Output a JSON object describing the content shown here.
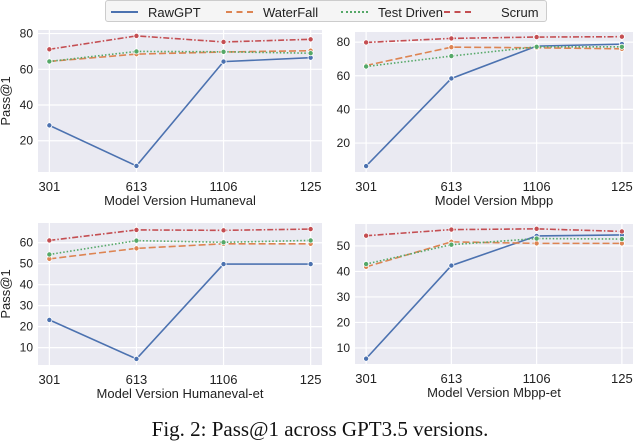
{
  "legend": {
    "placement": "top-center",
    "items": [
      {
        "name": "RawGPT",
        "color": "#4c72b0",
        "style": "solid"
      },
      {
        "name": "WaterFall",
        "color": "#dd8452",
        "style": "dashed"
      },
      {
        "name": "Test Driven",
        "color": "#55a868",
        "style": "dotted"
      },
      {
        "name": "Scrum",
        "color": "#c44e52",
        "style": "dashdot"
      }
    ]
  },
  "caption": "Fig. 2: Pass@1 across GPT3.5 versions.",
  "chart_data": [
    {
      "type": "line",
      "xlabel": "Model Version Humaneval",
      "ylabel": "Pass@1",
      "categories": [
        "301",
        "613",
        "1106",
        "125"
      ],
      "ylim": [
        2.5,
        82
      ],
      "yticks": [
        20,
        40,
        60,
        80
      ],
      "grid": true,
      "series": [
        {
          "name": "RawGPT",
          "values": [
            28.6,
            5.9,
            64.3,
            66.5
          ]
        },
        {
          "name": "WaterFall",
          "values": [
            64.4,
            68.5,
            69.7,
            70.4
          ]
        },
        {
          "name": "Test Driven",
          "values": [
            64.4,
            70.0,
            69.8,
            69.0
          ]
        },
        {
          "name": "Scrum",
          "values": [
            71.2,
            78.7,
            75.3,
            76.8
          ]
        }
      ]
    },
    {
      "type": "line",
      "xlabel": "Model Version Mbpp",
      "ylabel": "",
      "categories": [
        "301",
        "613",
        "1106",
        "125"
      ],
      "ylim": [
        2.8,
        86
      ],
      "yticks": [
        20,
        40,
        60,
        80
      ],
      "grid": true,
      "series": [
        {
          "name": "RawGPT",
          "values": [
            6.3,
            58.4,
            77.6,
            78.8
          ]
        },
        {
          "name": "WaterFall",
          "values": [
            66.1,
            77.0,
            76.6,
            76.0
          ]
        },
        {
          "name": "Test Driven",
          "values": [
            65.5,
            71.7,
            77.2,
            77.2
          ]
        },
        {
          "name": "Scrum",
          "values": [
            79.8,
            82.2,
            83.0,
            83.2
          ]
        }
      ]
    },
    {
      "type": "line",
      "xlabel": "Model Version Humaneval-et",
      "ylabel": "Pass@1",
      "categories": [
        "301",
        "613",
        "1106",
        "125"
      ],
      "ylim": [
        1.7,
        69.4
      ],
      "yticks": [
        10,
        20,
        30,
        40,
        50,
        60
      ],
      "grid": true,
      "series": [
        {
          "name": "RawGPT",
          "values": [
            23.2,
            4.6,
            49.8,
            49.8
          ]
        },
        {
          "name": "WaterFall",
          "values": [
            52.3,
            57.3,
            59.5,
            59.5
          ]
        },
        {
          "name": "Test Driven",
          "values": [
            54.4,
            61.0,
            60.2,
            61.1
          ]
        },
        {
          "name": "Scrum",
          "values": [
            61.1,
            66.1,
            65.9,
            66.5
          ]
        }
      ]
    },
    {
      "type": "line",
      "xlabel": "Model Version Mbpp-et",
      "ylabel": "",
      "categories": [
        "301",
        "613",
        "1106",
        "125"
      ],
      "ylim": [
        3.7,
        58.6
      ],
      "yticks": [
        10,
        20,
        30,
        40,
        50
      ],
      "grid": true,
      "series": [
        {
          "name": "RawGPT",
          "values": [
            5.8,
            42.3,
            53.9,
            54.3
          ]
        },
        {
          "name": "WaterFall",
          "values": [
            41.8,
            51.6,
            51.0,
            51.0
          ]
        },
        {
          "name": "Test Driven",
          "values": [
            42.9,
            50.5,
            52.9,
            52.7
          ]
        },
        {
          "name": "Scrum",
          "values": [
            54.0,
            56.4,
            56.7,
            55.7
          ]
        }
      ]
    }
  ]
}
